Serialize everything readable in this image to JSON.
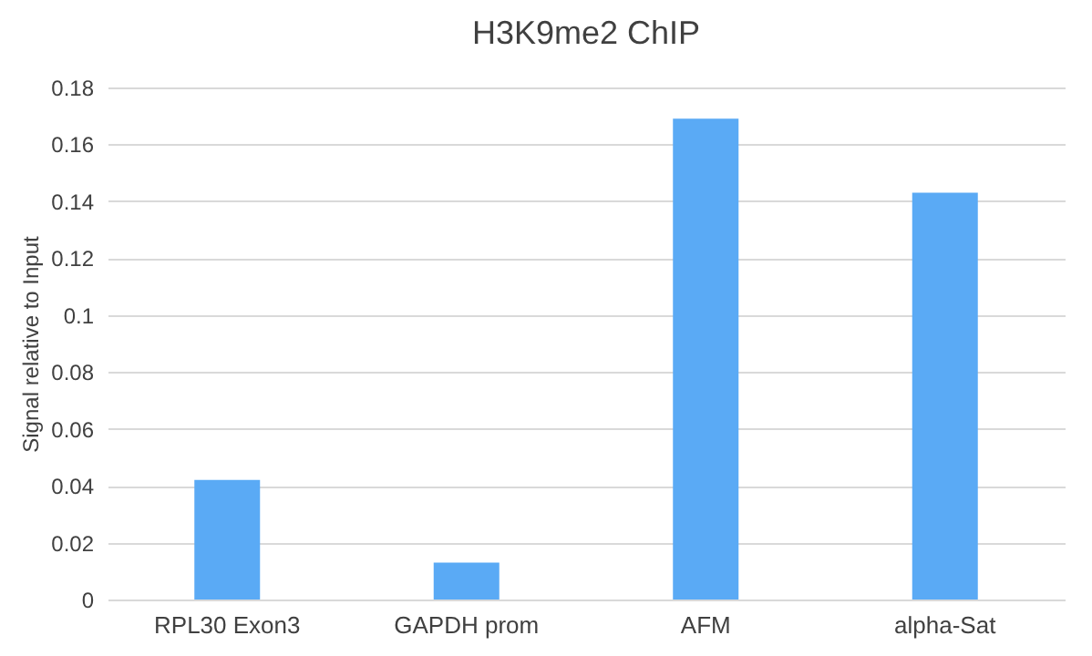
{
  "chart_data": {
    "type": "bar",
    "title": "H3K9me2 ChIP",
    "ylabel": "Signal relative to Input",
    "categories": [
      "RPL30 Exon3",
      "GAPDH prom",
      "AFM",
      "alpha-Sat"
    ],
    "values": [
      0.042,
      0.013,
      0.169,
      0.143
    ],
    "color": "#5aaaf5",
    "ylim": [
      0,
      0.18
    ],
    "yticks": [
      0,
      0.02,
      0.04,
      0.06,
      0.08,
      0.1,
      0.12,
      0.14,
      0.16,
      0.18
    ],
    "grid": "y"
  }
}
